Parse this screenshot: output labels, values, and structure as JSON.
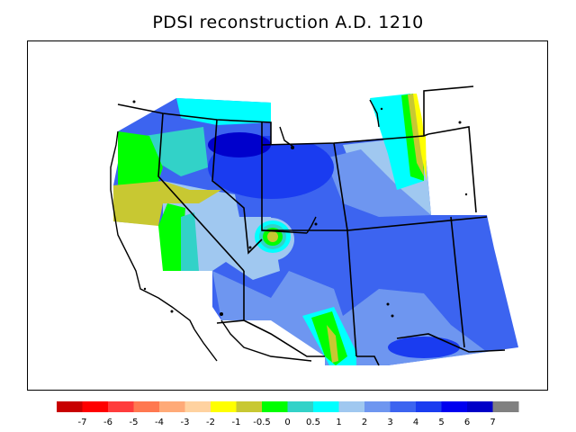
{
  "title": "PDSI reconstruction A.D. 1210",
  "map": {
    "colors": {
      "dark_blue": "#0000cc",
      "blue": "#1a3cf0",
      "mid_blue": "#3c64f0",
      "light_blue": "#6e96f0",
      "pale_blue": "#a0c8f0",
      "cyan": "#00ffff",
      "teal": "#32d2c8",
      "green": "#00ff00",
      "olive": "#c8c832",
      "yellow": "#ffff00",
      "outline": "#000000"
    }
  },
  "colorbar": {
    "labels": [
      "-7",
      "-6",
      "-5",
      "-4",
      "-3",
      "-2",
      "-1",
      "-0.5",
      "0",
      "0.5",
      "1",
      "2",
      "3",
      "4",
      "5",
      "6",
      "7"
    ],
    "colors": [
      "#c80000",
      "#ff0000",
      "#ff3c3c",
      "#ff7850",
      "#ffaa78",
      "#ffd2a0",
      "#ffff00",
      "#c8c832",
      "#00ff00",
      "#32d2c8",
      "#00ffff",
      "#a0c8f0",
      "#6e96f0",
      "#3c64f0",
      "#1a3cf0",
      "#0000f0",
      "#0000c8",
      "#808080"
    ]
  }
}
